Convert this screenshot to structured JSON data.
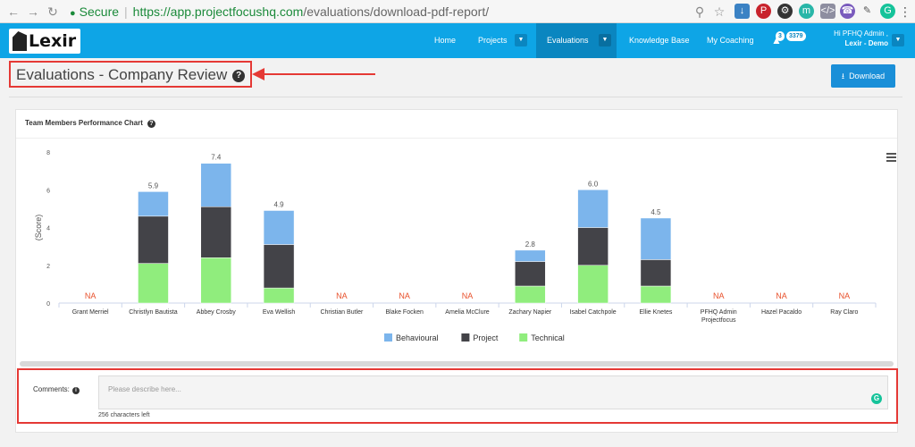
{
  "browser": {
    "secure_label": "Secure",
    "url_host": "https://app.projectfocushq.com",
    "url_path": "/evaluations/download-pdf-report/"
  },
  "navbar": {
    "logo_text": "Lexir",
    "items": [
      {
        "label": "Home"
      },
      {
        "label": "Projects"
      },
      {
        "label": "Evaluations"
      },
      {
        "label": "Knowledge Base"
      },
      {
        "label": "My Coaching"
      }
    ],
    "notifications_count": "3",
    "points_count": "3379",
    "user_greeting": "Hi PFHQ Admin ,",
    "user_company": "Lexir - Demo",
    "accent": "#0ea5e6"
  },
  "page": {
    "title": "Evaluations - Company Review",
    "download_label": "Download"
  },
  "chart_panel": {
    "title": "Team Members Performance Chart"
  },
  "chart_data": {
    "type": "bar",
    "stacked": true,
    "ylabel": "(Score)",
    "ylim": [
      0,
      8
    ],
    "yticks": [
      0,
      2,
      4,
      6,
      8
    ],
    "categories": [
      "Grant Merriel",
      "Christlyn Bautista",
      "Abbey Crosby",
      "Eva Wellish",
      "Christian Butler",
      "Blake Focken",
      "Amelia McClure",
      "Zachary Napier",
      "Isabel Catchpole",
      "Ellie Knetes",
      "PFHQ Admin Projectfocus",
      "Hazel Pacaldo",
      "Ray Claro"
    ],
    "series": [
      {
        "name": "Technical",
        "color": "#90ed7d",
        "values": [
          0,
          2.1,
          2.4,
          0.8,
          0,
          0,
          0,
          0.9,
          2.0,
          0.9,
          0,
          0,
          0
        ]
      },
      {
        "name": "Project",
        "color": "#434348",
        "values": [
          0,
          2.5,
          2.7,
          2.3,
          0,
          0,
          0,
          1.3,
          2.0,
          1.4,
          0,
          0,
          0
        ]
      },
      {
        "name": "Behavioural",
        "color": "#7cb5ec",
        "values": [
          0,
          1.3,
          2.3,
          1.8,
          0,
          0,
          0,
          0.6,
          2.0,
          2.2,
          0,
          0,
          0
        ]
      }
    ],
    "totals": [
      "NA",
      "5.9",
      "7.4",
      "4.9",
      "NA",
      "NA",
      "NA",
      "2.8",
      "6.0",
      "4.5",
      "NA",
      "NA",
      "NA"
    ],
    "legend": [
      "Behavioural",
      "Project",
      "Technical"
    ],
    "legend_position": "bottom",
    "na_color": "#e8502b"
  },
  "comments": {
    "label": "Comments:",
    "placeholder": "Please describe here...",
    "chars_left": "256 characters left"
  }
}
